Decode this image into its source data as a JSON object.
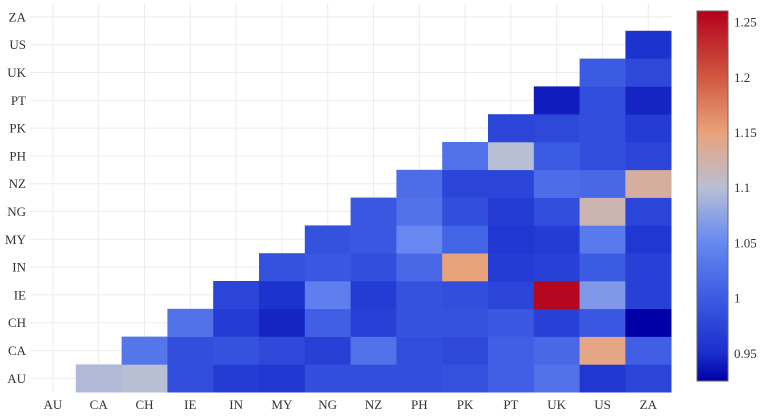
{
  "chart_data": {
    "type": "heatmap",
    "title": "",
    "xlabel": "",
    "ylabel": "",
    "x_categories": [
      "AU",
      "CA",
      "CH",
      "IE",
      "IN",
      "MY",
      "NG",
      "NZ",
      "PH",
      "PK",
      "PT",
      "UK",
      "US",
      "ZA"
    ],
    "y_categories": [
      "AU",
      "CA",
      "CH",
      "IE",
      "IN",
      "MY",
      "NG",
      "NZ",
      "PH",
      "PK",
      "PT",
      "UK",
      "US",
      "ZA"
    ],
    "colorscale": {
      "min": 0.925,
      "max": 1.26,
      "stops": [
        {
          "value": 0.925,
          "color": "#0000a6"
        },
        {
          "value": 0.95,
          "color": "#1a2ecc"
        },
        {
          "value": 1.0,
          "color": "#3c5be3"
        },
        {
          "value": 1.05,
          "color": "#6688f0"
        },
        {
          "value": 1.1,
          "color": "#b8bfd4"
        },
        {
          "value": 1.15,
          "color": "#e9a37b"
        },
        {
          "value": 1.2,
          "color": "#d1583f"
        },
        {
          "value": 1.26,
          "color": "#b2001c"
        }
      ],
      "ticks": [
        {
          "value": 0.95,
          "label": "0.95"
        },
        {
          "value": 1.0,
          "label": "1"
        },
        {
          "value": 1.05,
          "label": "1.05"
        },
        {
          "value": 1.1,
          "label": "1.1"
        },
        {
          "value": 1.15,
          "label": "1.15"
        },
        {
          "value": 1.2,
          "label": "1.2"
        },
        {
          "value": 1.25,
          "label": "1.25"
        }
      ]
    },
    "grid": true,
    "legend": "right",
    "cells": [
      {
        "x": "CA",
        "y": "AU",
        "v": 1.095
      },
      {
        "x": "CH",
        "y": "AU",
        "v": 1.1
      },
      {
        "x": "IE",
        "y": "AU",
        "v": 0.985
      },
      {
        "x": "IN",
        "y": "AU",
        "v": 0.965
      },
      {
        "x": "MY",
        "y": "AU",
        "v": 0.96
      },
      {
        "x": "NG",
        "y": "AU",
        "v": 0.985
      },
      {
        "x": "NZ",
        "y": "AU",
        "v": 0.985
      },
      {
        "x": "PH",
        "y": "AU",
        "v": 0.985
      },
      {
        "x": "PK",
        "y": "AU",
        "v": 0.99
      },
      {
        "x": "PT",
        "y": "AU",
        "v": 1.005
      },
      {
        "x": "UK",
        "y": "AU",
        "v": 1.025
      },
      {
        "x": "US",
        "y": "AU",
        "v": 0.96
      },
      {
        "x": "ZA",
        "y": "AU",
        "v": 0.975
      },
      {
        "x": "CH",
        "y": "CA",
        "v": 1.03
      },
      {
        "x": "IE",
        "y": "CA",
        "v": 0.985
      },
      {
        "x": "IN",
        "y": "CA",
        "v": 0.99
      },
      {
        "x": "MY",
        "y": "CA",
        "v": 0.98
      },
      {
        "x": "NG",
        "y": "CA",
        "v": 0.97
      },
      {
        "x": "NZ",
        "y": "CA",
        "v": 1.025
      },
      {
        "x": "PH",
        "y": "CA",
        "v": 0.985
      },
      {
        "x": "PK",
        "y": "CA",
        "v": 0.98
      },
      {
        "x": "PT",
        "y": "CA",
        "v": 1.005
      },
      {
        "x": "UK",
        "y": "CA",
        "v": 1.015
      },
      {
        "x": "US",
        "y": "CA",
        "v": 1.145
      },
      {
        "x": "ZA",
        "y": "CA",
        "v": 1.005
      },
      {
        "x": "IE",
        "y": "CH",
        "v": 1.025
      },
      {
        "x": "IN",
        "y": "CH",
        "v": 0.965
      },
      {
        "x": "MY",
        "y": "CH",
        "v": 0.945
      },
      {
        "x": "NG",
        "y": "CH",
        "v": 1.005
      },
      {
        "x": "NZ",
        "y": "CH",
        "v": 0.97
      },
      {
        "x": "PH",
        "y": "CH",
        "v": 0.99
      },
      {
        "x": "PK",
        "y": "CH",
        "v": 0.99
      },
      {
        "x": "PT",
        "y": "CH",
        "v": 0.995
      },
      {
        "x": "UK",
        "y": "CH",
        "v": 0.97
      },
      {
        "x": "US",
        "y": "CH",
        "v": 0.995
      },
      {
        "x": "ZA",
        "y": "CH",
        "v": 0.925
      },
      {
        "x": "IN",
        "y": "IE",
        "v": 0.975
      },
      {
        "x": "MY",
        "y": "IE",
        "v": 0.955
      },
      {
        "x": "NG",
        "y": "IE",
        "v": 1.04
      },
      {
        "x": "NZ",
        "y": "IE",
        "v": 0.965
      },
      {
        "x": "PH",
        "y": "IE",
        "v": 0.99
      },
      {
        "x": "PK",
        "y": "IE",
        "v": 0.985
      },
      {
        "x": "PT",
        "y": "IE",
        "v": 0.975
      },
      {
        "x": "UK",
        "y": "IE",
        "v": 1.255
      },
      {
        "x": "US",
        "y": "IE",
        "v": 1.065
      },
      {
        "x": "ZA",
        "y": "IE",
        "v": 0.97
      },
      {
        "x": "MY",
        "y": "IN",
        "v": 0.99
      },
      {
        "x": "NG",
        "y": "IN",
        "v": 0.995
      },
      {
        "x": "NZ",
        "y": "IN",
        "v": 0.985
      },
      {
        "x": "PH",
        "y": "IN",
        "v": 1.015
      },
      {
        "x": "PK",
        "y": "IN",
        "v": 1.15
      },
      {
        "x": "PT",
        "y": "IN",
        "v": 0.965
      },
      {
        "x": "UK",
        "y": "IN",
        "v": 0.97
      },
      {
        "x": "US",
        "y": "IN",
        "v": 1.0
      },
      {
        "x": "ZA",
        "y": "IN",
        "v": 0.97
      },
      {
        "x": "NG",
        "y": "MY",
        "v": 0.99
      },
      {
        "x": "NZ",
        "y": "MY",
        "v": 0.995
      },
      {
        "x": "PH",
        "y": "MY",
        "v": 1.05
      },
      {
        "x": "PK",
        "y": "MY",
        "v": 1.01
      },
      {
        "x": "PT",
        "y": "MY",
        "v": 0.96
      },
      {
        "x": "UK",
        "y": "MY",
        "v": 0.965
      },
      {
        "x": "US",
        "y": "MY",
        "v": 1.035
      },
      {
        "x": "ZA",
        "y": "MY",
        "v": 0.96
      },
      {
        "x": "NZ",
        "y": "NG",
        "v": 0.995
      },
      {
        "x": "PH",
        "y": "NG",
        "v": 1.025
      },
      {
        "x": "PK",
        "y": "NG",
        "v": 0.985
      },
      {
        "x": "PT",
        "y": "NG",
        "v": 0.965
      },
      {
        "x": "UK",
        "y": "NG",
        "v": 0.985
      },
      {
        "x": "US",
        "y": "NG",
        "v": 1.12
      },
      {
        "x": "ZA",
        "y": "NG",
        "v": 0.975
      },
      {
        "x": "PH",
        "y": "NZ",
        "v": 1.02
      },
      {
        "x": "PK",
        "y": "NZ",
        "v": 0.975
      },
      {
        "x": "PT",
        "y": "NZ",
        "v": 0.975
      },
      {
        "x": "UK",
        "y": "NZ",
        "v": 1.02
      },
      {
        "x": "US",
        "y": "NZ",
        "v": 1.015
      },
      {
        "x": "ZA",
        "y": "NZ",
        "v": 1.13
      },
      {
        "x": "PK",
        "y": "PH",
        "v": 1.025
      },
      {
        "x": "PT",
        "y": "PH",
        "v": 1.1
      },
      {
        "x": "UK",
        "y": "PH",
        "v": 1.0
      },
      {
        "x": "US",
        "y": "PH",
        "v": 0.985
      },
      {
        "x": "ZA",
        "y": "PH",
        "v": 0.975
      },
      {
        "x": "PT",
        "y": "PK",
        "v": 0.975
      },
      {
        "x": "UK",
        "y": "PK",
        "v": 0.98
      },
      {
        "x": "US",
        "y": "PK",
        "v": 0.985
      },
      {
        "x": "ZA",
        "y": "PK",
        "v": 0.965
      },
      {
        "x": "UK",
        "y": "PT",
        "v": 0.94
      },
      {
        "x": "US",
        "y": "PT",
        "v": 0.985
      },
      {
        "x": "ZA",
        "y": "PT",
        "v": 0.945
      },
      {
        "x": "US",
        "y": "UK",
        "v": 1.0
      },
      {
        "x": "ZA",
        "y": "UK",
        "v": 0.98
      },
      {
        "x": "ZA",
        "y": "US",
        "v": 0.955
      }
    ]
  }
}
